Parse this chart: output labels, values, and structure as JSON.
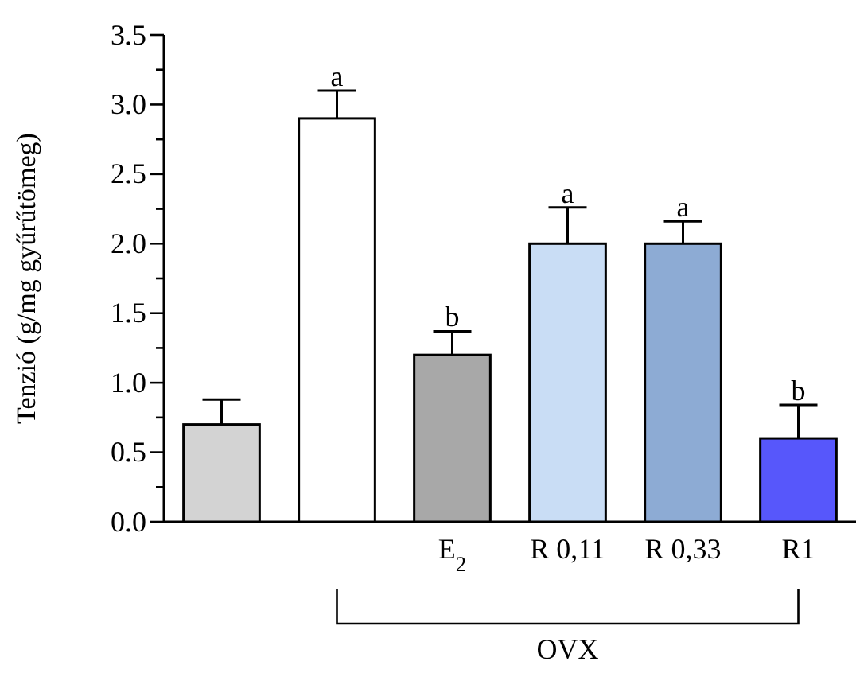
{
  "chart_data": {
    "type": "bar",
    "ylabel": "Tenzió (g/mg gyűrűtömeg)",
    "categories": [
      null,
      null,
      "E$_{2}$",
      "R 0,11",
      "R 0,33",
      "R1"
    ],
    "values": [
      0.7,
      2.9,
      1.2,
      2.0,
      2.0,
      0.6
    ],
    "colors": [
      "#d3d3d3",
      "#ffffff",
      "#a8a8a8",
      "#c9ddf5",
      "#8dabd4",
      "#5757fb"
    ],
    "errors": [
      [
        0.7,
        0.88
      ],
      [
        2.9,
        3.1
      ],
      [
        1.2,
        1.37
      ],
      [
        2.0,
        2.26
      ],
      [
        2.0,
        2.16
      ],
      [
        0.6,
        0.84
      ]
    ],
    "value_labels": [
      null,
      "a",
      "b",
      "a",
      "a",
      "b"
    ],
    "ylim": [
      0,
      3.5
    ],
    "yticks": [
      {
        "value": 0,
        "label": "0.0"
      },
      {
        "value": 0.25,
        "label": null
      },
      {
        "value": 0.5,
        "label": "0.5"
      },
      {
        "value": 0.75,
        "label": null
      },
      {
        "value": 1,
        "label": "1.0"
      },
      {
        "value": 1.25,
        "label": null
      },
      {
        "value": 1.5,
        "label": "1.5"
      },
      {
        "value": 1.75,
        "label": null
      },
      {
        "value": 2,
        "label": "2.0"
      },
      {
        "value": 2.25,
        "label": null
      },
      {
        "value": 2.5,
        "label": "2.5"
      },
      {
        "value": 2.75,
        "label": null
      },
      {
        "value": 3,
        "label": "3.0"
      },
      {
        "value": 3.25,
        "label": null
      },
      {
        "value": 3.5,
        "label": "3.5"
      }
    ],
    "annotations": [
      "OVX"
    ],
    "grid": false
  }
}
